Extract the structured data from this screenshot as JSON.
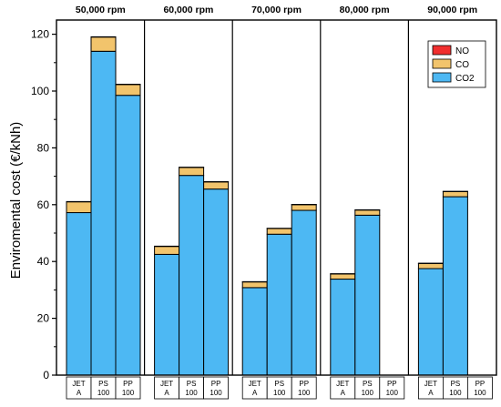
{
  "chart_data": {
    "type": "bar",
    "stacked": true,
    "ylabel": "Enviromental cost (€/kNh)",
    "xlabel": "",
    "ylim": [
      0,
      125
    ],
    "yticks": [
      0,
      20,
      40,
      60,
      80,
      100,
      120
    ],
    "ytick_labels": [
      "0",
      "20",
      "40",
      "60",
      "80",
      "100",
      "120"
    ],
    "grid": false,
    "legend_position": "top-right",
    "categories": [
      {
        "line1": "JET",
        "line2": "A"
      },
      {
        "line1": "PS",
        "line2": "100"
      },
      {
        "line1": "PP",
        "line2": "100"
      }
    ],
    "series": [
      {
        "name": "CO2",
        "color": "#4db8f3"
      },
      {
        "name": "CO",
        "color": "#f2c46c"
      },
      {
        "name": "NO",
        "color": "#f02e2e"
      }
    ],
    "legend_order": [
      "NO",
      "CO",
      "CO2"
    ],
    "panels": [
      {
        "title": "50,000 rpm",
        "values": {
          "CO2": [
            57.2,
            114.0,
            98.5
          ],
          "CO": [
            3.8,
            5.0,
            3.8
          ],
          "NO": [
            0.1,
            0.1,
            0.1
          ]
        }
      },
      {
        "title": "60,000 rpm",
        "values": {
          "CO2": [
            42.5,
            70.3,
            65.5
          ],
          "CO": [
            2.8,
            2.8,
            2.5
          ],
          "NO": [
            0.1,
            0.1,
            0.1
          ]
        }
      },
      {
        "title": "70,000 rpm",
        "values": {
          "CO2": [
            30.8,
            49.6,
            58.0
          ],
          "CO": [
            2.0,
            2.0,
            2.0
          ],
          "NO": [
            0.1,
            0.1,
            0.1
          ]
        }
      },
      {
        "title": "80,000 rpm",
        "values": {
          "CO2": [
            33.8,
            56.3,
            null
          ],
          "CO": [
            1.8,
            1.8,
            null
          ],
          "NO": [
            0.1,
            0.1,
            null
          ]
        }
      },
      {
        "title": "90,000 rpm",
        "values": {
          "CO2": [
            37.5,
            62.8,
            null
          ],
          "CO": [
            1.8,
            1.8,
            null
          ],
          "NO": [
            0.1,
            0.1,
            null
          ]
        }
      }
    ]
  }
}
